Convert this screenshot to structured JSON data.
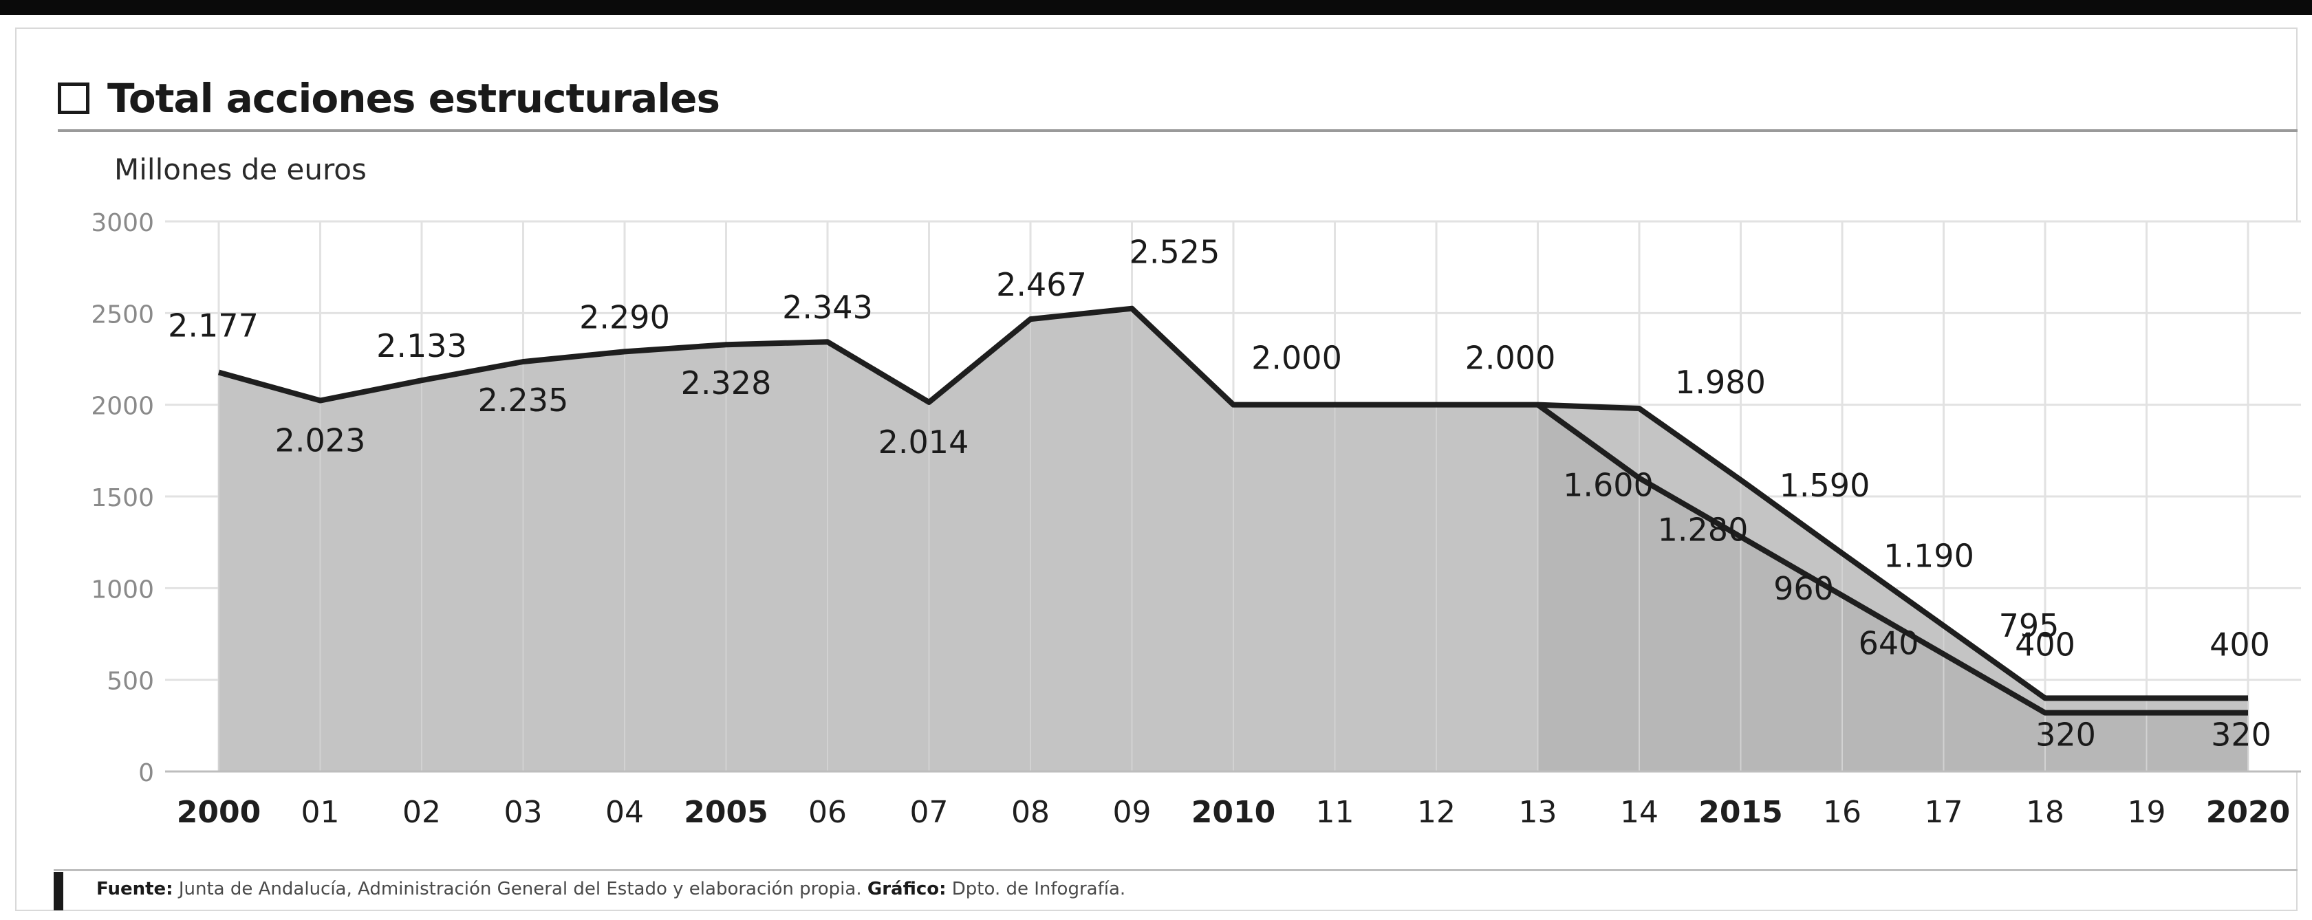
{
  "header": {
    "title": "Total acciones estructurales",
    "units": "Millones de euros"
  },
  "source": {
    "label": "Fuente:",
    "text": " Junta de Andalucía, Administración General del Estado y elaboración propia.",
    "credit_label": "Gráfico:",
    "credit_text": " Dpto. de Infografía."
  },
  "colors": {
    "area_fill": "#c4c4c4",
    "area_fill_dark": "#adadad",
    "line": "#1e1e1e",
    "grid": "#e2e2e2",
    "plot_bg": "#ffffff"
  },
  "chart_data": {
    "type": "area",
    "ylim": [
      0,
      3000
    ],
    "yticks": [
      "0",
      "500",
      "1000",
      "1500",
      "2000",
      "2500",
      "3000"
    ],
    "ytick_values": [
      0,
      500,
      1000,
      1500,
      2000,
      2500,
      3000
    ],
    "x": [
      2000,
      2001,
      2002,
      2003,
      2004,
      2005,
      2006,
      2007,
      2008,
      2009,
      2010,
      2011,
      2012,
      2013,
      2014,
      2015,
      2016,
      2017,
      2018,
      2019,
      2020
    ],
    "xtick_labels": [
      "2000",
      "01",
      "02",
      "03",
      "04",
      "2005",
      "06",
      "07",
      "08",
      "09",
      "2010",
      "11",
      "12",
      "13",
      "14",
      "2015",
      "16",
      "17",
      "18",
      "19",
      "2020"
    ],
    "xtick_bold": [
      true,
      false,
      false,
      false,
      false,
      true,
      false,
      false,
      false,
      false,
      true,
      false,
      false,
      false,
      false,
      true,
      false,
      false,
      false,
      false,
      true
    ],
    "grid": true,
    "series": [
      {
        "values": [
          2177,
          2023,
          2133,
          2235,
          2290,
          2328,
          2343,
          2014,
          2467,
          2525,
          2000,
          2000,
          2000,
          2000,
          1980,
          1590,
          1190,
          795,
          400,
          400,
          400
        ]
      },
      {
        "values": [
          null,
          null,
          null,
          null,
          null,
          null,
          null,
          null,
          null,
          null,
          null,
          null,
          null,
          2000,
          1600,
          1280,
          960,
          640,
          320,
          320,
          320
        ]
      }
    ],
    "annotations": [
      {
        "x": 2000,
        "y": 2177,
        "text": "2.177"
      },
      {
        "x": 2001,
        "y": 2023,
        "text": "2.023"
      },
      {
        "x": 2002,
        "y": 2133,
        "text": "2.133"
      },
      {
        "x": 2003,
        "y": 2235,
        "text": "2.235"
      },
      {
        "x": 2004,
        "y": 2290,
        "text": "2.290"
      },
      {
        "x": 2005,
        "y": 2328,
        "text": "2.328"
      },
      {
        "x": 2006,
        "y": 2343,
        "text": "2.343"
      },
      {
        "x": 2007,
        "y": 2014,
        "text": "2.014"
      },
      {
        "x": 2008,
        "y": 2467,
        "text": "2.467"
      },
      {
        "x": 2009,
        "y": 2525,
        "text": "2.525"
      },
      {
        "x": 2010,
        "y": 2000,
        "text": "2.000"
      },
      {
        "x": 2013,
        "y": 2000,
        "text": "2.000"
      },
      {
        "x": 2014,
        "y": 1980,
        "text": "1.980"
      },
      {
        "x": 2015,
        "y": 1590,
        "text": "1.590"
      },
      {
        "x": 2016,
        "y": 1190,
        "text": "1.190"
      },
      {
        "x": 2017,
        "y": 795,
        "text": "795"
      },
      {
        "x": 2018,
        "y": 400,
        "text": "400"
      },
      {
        "x": 2020,
        "y": 400,
        "text": "400"
      },
      {
        "x": 2014,
        "y": 1600,
        "text": "1.600"
      },
      {
        "x": 2015,
        "y": 1280,
        "text": "1.280"
      },
      {
        "x": 2016,
        "y": 960,
        "text": "960"
      },
      {
        "x": 2017,
        "y": 640,
        "text": "640"
      },
      {
        "x": 2018,
        "y": 320,
        "text": "320"
      },
      {
        "x": 2020,
        "y": 320,
        "text": "320"
      }
    ]
  }
}
